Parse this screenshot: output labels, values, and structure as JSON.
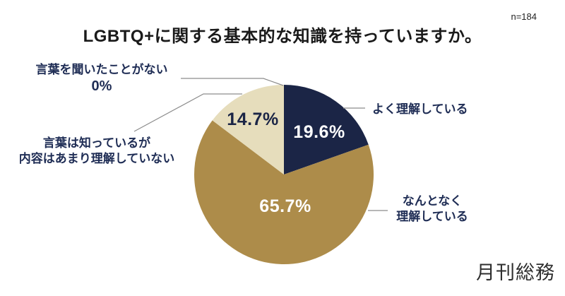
{
  "chart_data": {
    "type": "pie",
    "title": "LGBTQ+に関する基本的な知識を持っていますか。",
    "sample_size_label": "n=184",
    "start_angle_deg": 0,
    "direction": "clockwise",
    "legend_position": "outside-callouts",
    "slices": [
      {
        "label": "よく理解している",
        "value": 19.6,
        "display": "19.6%",
        "color": "#1b2546"
      },
      {
        "label": "なんとなく理解している",
        "value": 65.7,
        "display": "65.7%",
        "color": "#ad8c4a"
      },
      {
        "label": "言葉は知っているが内容はあまり理解していない",
        "value": 14.7,
        "display": "14.7%",
        "color": "#e6ddbc"
      },
      {
        "label": "言葉を聞いたことがない",
        "value": 0,
        "display": "0%",
        "color": "#1b2546"
      }
    ]
  },
  "annotations": {
    "never_heard": {
      "label": "言葉を聞いたことがない",
      "pct": "0%"
    },
    "know_word": {
      "line1": "言葉は知っているが",
      "line2": "内容はあまり理解していない"
    },
    "understand_well": {
      "label": "よく理解している"
    },
    "somewhat": {
      "line1": "なんとなく",
      "line2": "理解している"
    }
  },
  "colors": {
    "navy": "#1b2546",
    "gold": "#ad8c4a",
    "cream": "#e6ddbc",
    "leader_line": "#8c8c8c",
    "label_text": "#1f2d55"
  },
  "brand": {
    "logo_text": "月刊総務"
  }
}
